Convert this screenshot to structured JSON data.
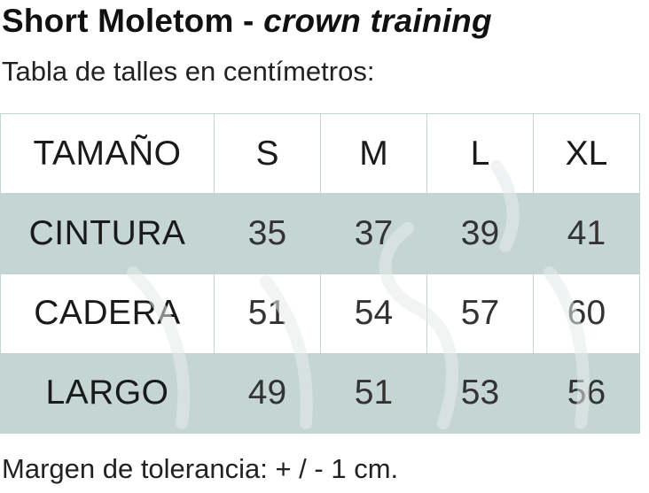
{
  "header": {
    "title_bold": "Short Moletom - ",
    "title_italic": "crown training",
    "subtitle": "Tabla de talles en centímetros:"
  },
  "size_table": {
    "corner_label": "TAMAÑO",
    "columns": [
      "S",
      "M",
      "L",
      "XL"
    ],
    "rows": [
      {
        "label": "CINTURA",
        "values": [
          "35",
          "37",
          "39",
          "41"
        ]
      },
      {
        "label": "CADERA",
        "values": [
          "51",
          "54",
          "57",
          "60"
        ]
      },
      {
        "label": "LARGO",
        "values": [
          "49",
          "51",
          "53",
          "56"
        ]
      }
    ]
  },
  "footer": {
    "note": "Margen de tolerancia: + / - 1 cm."
  },
  "colors": {
    "shaded_row": "#c5d5d4",
    "grid_border": "#c3d3d2",
    "text": "#111111",
    "watermark": "#dfe7e6"
  }
}
